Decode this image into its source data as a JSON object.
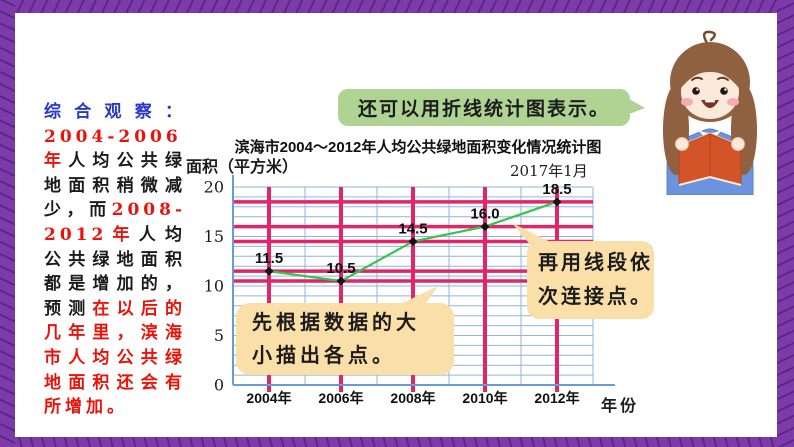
{
  "colors": {
    "frame-purple": "#7c3ba8",
    "frame-purple-dark": "#5e2687",
    "text-blue": "#2838cc",
    "text-red": "#ea1309",
    "text-black": "#1c1c1c",
    "grid-blue": "#8fb6da",
    "axis-blue": "#6a9cd2",
    "guide-pink": "#e22568",
    "line-green": "#35c44d",
    "bubble-green": "#aed392",
    "bubble-orange": "#fbdfa9",
    "girl-hair": "#8f6140",
    "girl-skin": "#fde9d9",
    "girl-sweater": "#6b93de",
    "girl-book": "#d4542a"
  },
  "observation": {
    "segments": [
      {
        "text": "综合观察：",
        "color": "#2838cc"
      },
      {
        "text": "2004-2006年",
        "color": "#ea1309"
      },
      {
        "text": "人均公共绿地面积稍微减少，而",
        "color": "#1c1c1c"
      },
      {
        "text": "2008-2012年",
        "color": "#ea1309"
      },
      {
        "text": "人均公共绿地面积都是增加的，预测",
        "color": "#1c1c1c"
      },
      {
        "text": "在以后的几年里，滨海市人均公共绿地面积还会有所增加。",
        "color": "#ea1309"
      }
    ]
  },
  "bubbles": {
    "method_hint": "还可以用折线统计图表示。",
    "step1_lines": [
      "先根据数据的大",
      "小描出各点。"
    ],
    "step2_lines": [
      "再用线段依",
      "次连接点。"
    ]
  },
  "chart_data": {
    "type": "line",
    "title": "滨海市2004～2012年人均公共绿地面积变化情况统计图",
    "date_note": "2017年1月",
    "ylabel": "面积（平方米）",
    "xlabel": "年份",
    "categories": [
      "2004年",
      "2006年",
      "2008年",
      "2010年",
      "2012年"
    ],
    "values": [
      11.5,
      10.5,
      14.5,
      16.0,
      18.5
    ],
    "value_labels": [
      "11.5",
      "10.5",
      "14.5",
      "16.0",
      "18.5"
    ],
    "yticks": [
      0,
      5,
      10,
      15,
      20
    ],
    "ytick_labels": [
      "0",
      "5",
      "10",
      "15",
      "20"
    ],
    "ylim": [
      0,
      20
    ],
    "legend": "none",
    "grid": {
      "minor_unit": 1,
      "pink_guides_at_values": true,
      "pink_guides_at_years": true
    }
  }
}
